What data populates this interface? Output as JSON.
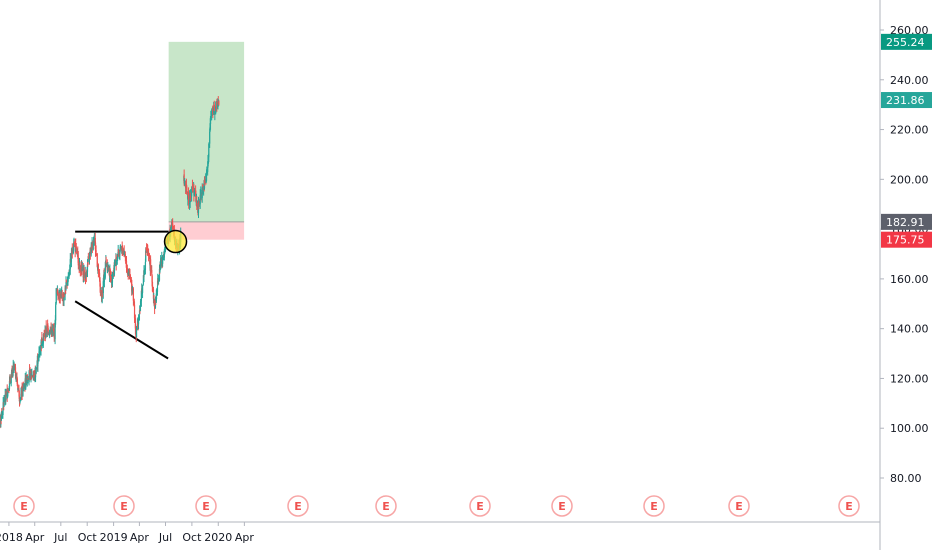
{
  "chart_data": {
    "type": "candlestick",
    "x_ticks": [
      "2018",
      "Apr",
      "Jul",
      "Oct",
      "2019",
      "Apr",
      "Jul",
      "Oct",
      "2020",
      "Apr"
    ],
    "y_ticks": [
      "80.00",
      "100.00",
      "120.00",
      "140.00",
      "160.00",
      "180.00",
      "200.00",
      "220.00",
      "240.00",
      "260.00"
    ],
    "ylim": [
      60,
      265
    ],
    "grid": false,
    "colors": {
      "up": "#26a69a",
      "down": "#ef5350",
      "target_zone": "#c8e6c9",
      "stop_zone": "#ffcdd2",
      "line": "#000000"
    },
    "earnings_marker": "E",
    "earnings_count": 11,
    "trendlines": [
      {
        "label": "resistance",
        "from": [
          "2018-08-20",
          179
        ],
        "to": [
          "2019-07-12",
          179
        ]
      },
      {
        "label": "support",
        "from": [
          "2018-08-20",
          151
        ],
        "to": [
          "2019-07-10",
          128
        ]
      }
    ],
    "position": {
      "entry": 182.91,
      "stop": 175.75,
      "target": 255.24,
      "start": "2019-07-12",
      "end": "2020-03-31"
    },
    "price_labels": [
      {
        "value": "255.24",
        "color": "#089981"
      },
      {
        "value": "231.86",
        "color": "#26a69a"
      },
      {
        "value": "182.91",
        "color": "#5d606b"
      },
      {
        "value": "175.75",
        "color": "#f23645"
      }
    ],
    "highlight_circle": {
      "date": "2019-08-05",
      "price": 175
    },
    "price_path": [
      [
        "2017-11-15",
        95
      ],
      [
        "2017-12-15",
        110
      ],
      [
        "2018-01-20",
        125
      ],
      [
        "2018-02-08",
        112
      ],
      [
        "2018-03-10",
        122
      ],
      [
        "2018-04-01",
        121
      ],
      [
        "2018-04-25",
        135
      ],
      [
        "2018-05-15",
        140
      ],
      [
        "2018-06-10",
        138
      ],
      [
        "2018-06-15",
        155
      ],
      [
        "2018-07-10",
        152
      ],
      [
        "2018-07-30",
        163
      ],
      [
        "2018-08-15",
        175
      ],
      [
        "2018-09-05",
        165
      ],
      [
        "2018-09-25",
        161
      ],
      [
        "2018-10-10",
        170
      ],
      [
        "2018-10-25",
        177
      ],
      [
        "2018-11-10",
        162
      ],
      [
        "2018-11-20",
        152
      ],
      [
        "2018-12-05",
        167
      ],
      [
        "2018-12-25",
        160
      ],
      [
        "2019-01-15",
        170
      ],
      [
        "2019-02-05",
        172
      ],
      [
        "2019-02-20",
        163
      ],
      [
        "2019-03-10",
        155
      ],
      [
        "2019-03-20",
        137
      ],
      [
        "2019-04-05",
        150
      ],
      [
        "2019-04-25",
        172
      ],
      [
        "2019-05-10",
        165
      ],
      [
        "2019-05-25",
        148
      ],
      [
        "2019-06-10",
        165
      ],
      [
        "2019-06-25",
        170
      ],
      [
        "2019-07-15",
        179
      ],
      [
        "2019-07-25",
        182
      ],
      [
        "2019-08-10",
        172
      ],
      [
        "2019-08-22",
        175
      ],
      [
        "2019-09-03",
        200
      ],
      [
        "2019-09-20",
        192
      ],
      [
        "2019-10-05",
        197
      ],
      [
        "2019-10-22",
        188
      ],
      [
        "2019-11-05",
        195
      ],
      [
        "2019-11-20",
        200
      ],
      [
        "2019-11-28",
        210
      ],
      [
        "2019-12-05",
        226
      ],
      [
        "2019-12-20",
        228
      ],
      [
        "2020-01-03",
        231
      ]
    ],
    "gaps": [
      "2019-08-25",
      "2019-09-03"
    ]
  }
}
